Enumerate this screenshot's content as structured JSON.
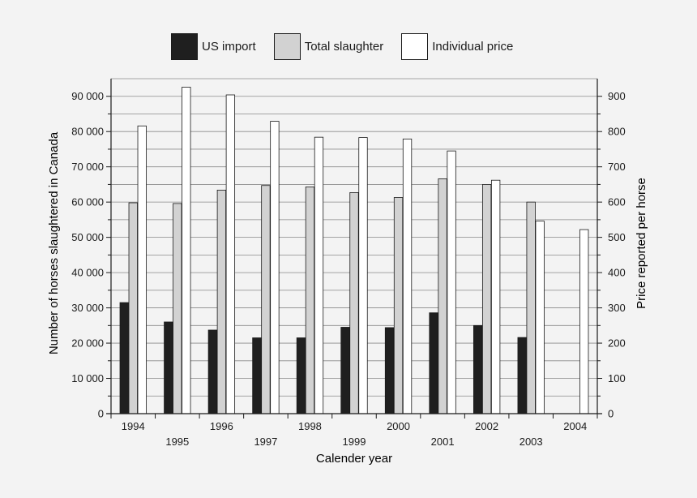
{
  "legend": [
    {
      "label": "US import",
      "color": "#1f1f1f"
    },
    {
      "label": "Total slaughter",
      "color": "#d2d2d2"
    },
    {
      "label": "Individual price",
      "color": "#ffffff"
    }
  ],
  "chart_data": {
    "type": "bar",
    "categories": [
      "1994",
      "1995",
      "1996",
      "1997",
      "1998",
      "1999",
      "2000",
      "2001",
      "2002",
      "2003",
      "2004"
    ],
    "series": [
      {
        "name": "US import",
        "axis": "left",
        "values": [
          31500,
          26000,
          23700,
          21500,
          21500,
          24500,
          24400,
          28600,
          25000,
          21600,
          null
        ]
      },
      {
        "name": "Total slaughter",
        "axis": "left",
        "values": [
          59800,
          59600,
          63400,
          64700,
          64300,
          62700,
          61300,
          66600,
          65000,
          60000,
          null
        ]
      },
      {
        "name": "Individual price",
        "axis": "right",
        "values": [
          816,
          926,
          904,
          829,
          784,
          783,
          779,
          745,
          662,
          546,
          522
        ]
      }
    ],
    "xlabel": "Calender year",
    "ylabel": "Number of horses slaughtered in Canada",
    "y2label": "Price reported per horse",
    "ylim": [
      0,
      95000
    ],
    "y2lim": [
      0,
      950
    ],
    "yticks": [
      "0",
      "10 000",
      "20 000",
      "30 000",
      "40 000",
      "50 000",
      "60 000",
      "70 000",
      "80 000",
      "90 000"
    ],
    "y2ticks": [
      "0",
      "100",
      "200",
      "300",
      "400",
      "500",
      "600",
      "700",
      "800",
      "900"
    ],
    "grid": true,
    "legend_position": "top"
  }
}
